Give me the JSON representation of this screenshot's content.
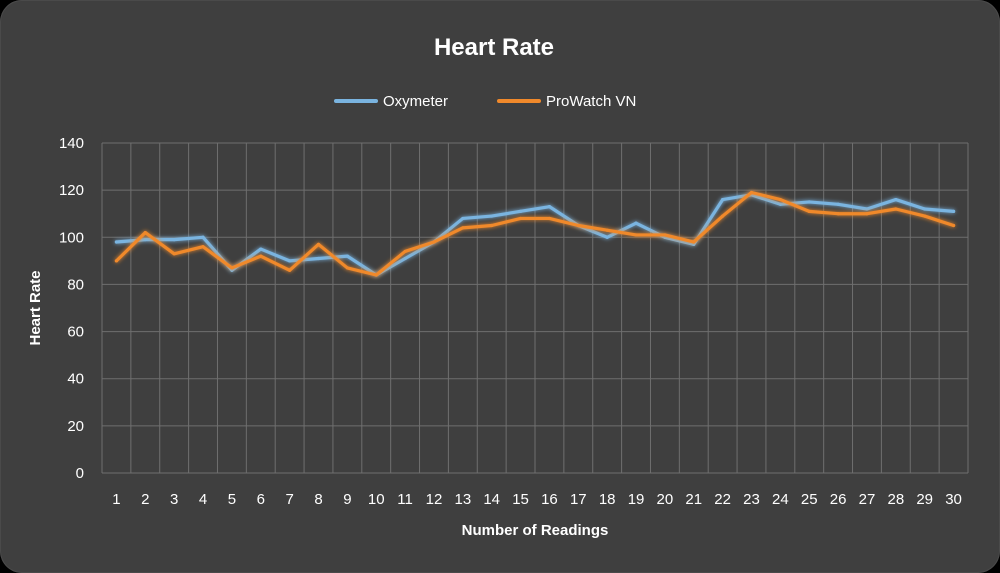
{
  "chart_data": {
    "type": "line",
    "title": "Heart Rate",
    "xlabel": "Number of Readings",
    "ylabel": "Heart Rate",
    "ylim": [
      0,
      140
    ],
    "yticks": [
      0,
      20,
      40,
      60,
      80,
      100,
      120,
      140
    ],
    "grid": true,
    "legend_position": "top-center",
    "categories": [
      "1",
      "2",
      "3",
      "4",
      "5",
      "6",
      "7",
      "8",
      "9",
      "10",
      "11",
      "12",
      "13",
      "14",
      "15",
      "16",
      "17",
      "18",
      "19",
      "20",
      "21",
      "22",
      "23",
      "24",
      "25",
      "26",
      "27",
      "28",
      "29",
      "30"
    ],
    "series": [
      {
        "name": "Oxymeter",
        "color": "#7ab4e0",
        "values": [
          98,
          99,
          99,
          100,
          86,
          95,
          90,
          91,
          92,
          84,
          91,
          98,
          108,
          109,
          111,
          113,
          105,
          100,
          106,
          100,
          97,
          116,
          118,
          114,
          115,
          114,
          112,
          116,
          112,
          111
        ]
      },
      {
        "name": "ProWatch VN",
        "color": "#f0892b",
        "values": [
          90,
          102,
          93,
          96,
          87,
          92,
          86,
          97,
          87,
          84,
          94,
          98,
          104,
          105,
          108,
          108,
          105,
          103,
          101,
          101,
          98,
          109,
          119,
          116,
          111,
          110,
          110,
          112,
          109,
          105
        ]
      }
    ]
  }
}
